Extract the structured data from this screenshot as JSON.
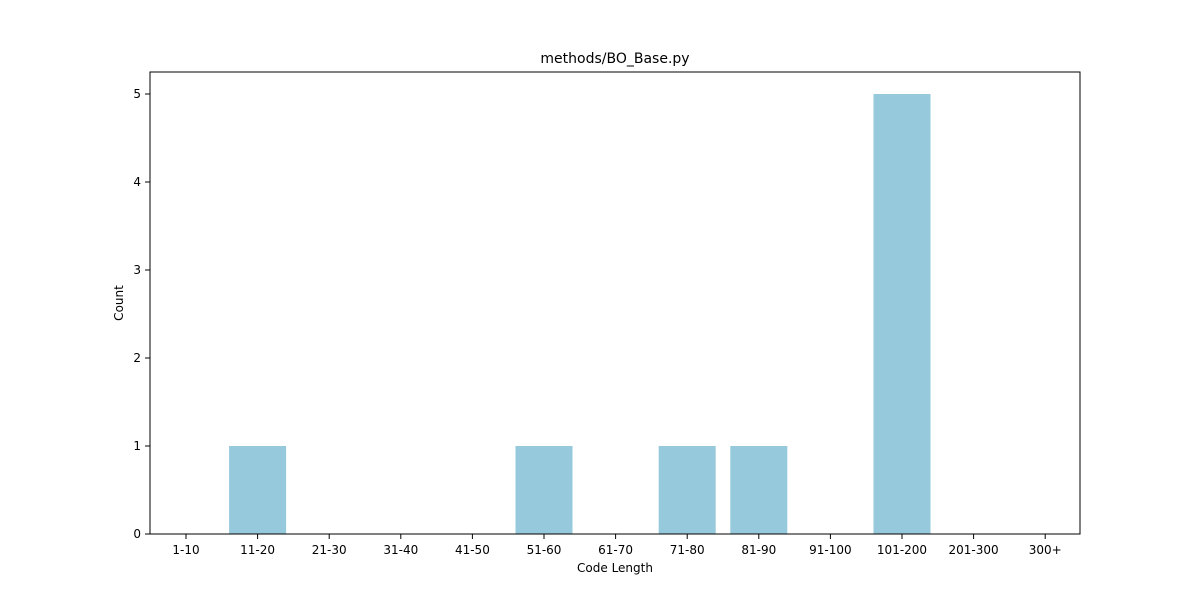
{
  "chart_data": {
    "type": "bar",
    "title": "methods/BO_Base.py",
    "xlabel": "Code Length",
    "ylabel": "Count",
    "categories": [
      "1-10",
      "11-20",
      "21-30",
      "31-40",
      "41-50",
      "51-60",
      "61-70",
      "71-80",
      "81-90",
      "91-100",
      "101-200",
      "201-300",
      "300+"
    ],
    "values": [
      0,
      1,
      0,
      0,
      0,
      1,
      0,
      1,
      1,
      0,
      5,
      0,
      0
    ],
    "yticks": [
      0,
      1,
      2,
      3,
      4,
      5
    ],
    "ylim": [
      0,
      5.25
    ],
    "grid": false,
    "bar_color": "#96c9dc"
  }
}
